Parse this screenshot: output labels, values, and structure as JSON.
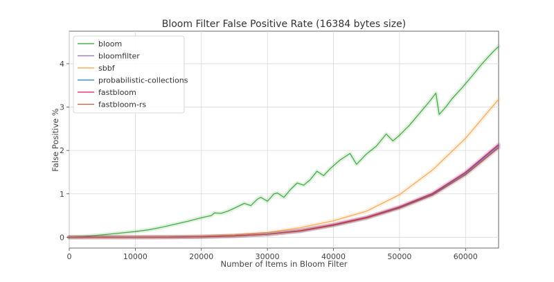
{
  "chart_data": {
    "type": "line",
    "title": "Bloom Filter False Positive Rate (16384 bytes size)",
    "xlabel": "Number of Items in Bloom Filter",
    "ylabel": "False Positive %",
    "xlim": [
      0,
      65000
    ],
    "ylim": [
      -0.25,
      4.75
    ],
    "xticks": [
      0,
      10000,
      20000,
      30000,
      40000,
      50000,
      60000
    ],
    "yticks": [
      0,
      1,
      2,
      3,
      4
    ],
    "grid": true,
    "legend_position": "top-left",
    "series": [
      {
        "name": "bloom",
        "color": "#2ca02c",
        "x": [
          0,
          2000,
          4000,
          6000,
          8000,
          10000,
          12000,
          14000,
          16000,
          18000,
          20000,
          21500,
          22000,
          23000,
          24000,
          25000,
          26500,
          27500,
          28500,
          29000,
          30000,
          31000,
          31500,
          32500,
          33500,
          34500,
          35500,
          36500,
          37500,
          38500,
          39500,
          41000,
          42500,
          43500,
          45000,
          46500,
          48000,
          49000,
          50000,
          51500,
          53000,
          54500,
          55500,
          56000,
          57000,
          58000,
          59500,
          61000,
          62500,
          64000,
          65000
        ],
        "values": [
          0.0,
          0.01,
          0.04,
          0.07,
          0.1,
          0.13,
          0.17,
          0.23,
          0.3,
          0.37,
          0.45,
          0.5,
          0.56,
          0.55,
          0.6,
          0.67,
          0.78,
          0.73,
          0.88,
          0.92,
          0.83,
          1.0,
          1.02,
          0.92,
          1.1,
          1.25,
          1.2,
          1.33,
          1.52,
          1.42,
          1.58,
          1.78,
          1.93,
          1.68,
          1.92,
          2.1,
          2.38,
          2.22,
          2.35,
          2.58,
          2.85,
          3.12,
          3.32,
          2.83,
          3.0,
          3.2,
          3.45,
          3.72,
          4.0,
          4.25,
          4.4
        ]
      },
      {
        "name": "bloomfilter",
        "color": "#9467bd",
        "x": [
          0,
          5000,
          10000,
          15000,
          20000,
          25000,
          30000,
          35000,
          40000,
          45000,
          50000,
          55000,
          60000,
          65000
        ],
        "values": [
          0.0,
          0.0,
          0.0,
          0.002,
          0.01,
          0.03,
          0.07,
          0.15,
          0.28,
          0.45,
          0.68,
          0.98,
          1.45,
          2.08
        ]
      },
      {
        "name": "sbbf",
        "color": "#ff9f3f",
        "x": [
          0,
          5000,
          10000,
          15000,
          20000,
          25000,
          30000,
          35000,
          40000,
          45000,
          50000,
          55000,
          60000,
          65000
        ],
        "values": [
          0.0,
          0.0,
          0.001,
          0.005,
          0.02,
          0.05,
          0.11,
          0.22,
          0.38,
          0.6,
          0.98,
          1.55,
          2.28,
          3.18
        ]
      },
      {
        "name": "probabilistic-collections",
        "color": "#1f77b4",
        "x": [
          0,
          5000,
          10000,
          15000,
          20000,
          25000,
          30000,
          35000,
          40000,
          45000,
          50000,
          55000,
          60000,
          65000
        ],
        "values": [
          0.0,
          0.0,
          0.0,
          0.002,
          0.01,
          0.03,
          0.07,
          0.15,
          0.28,
          0.45,
          0.69,
          1.0,
          1.48,
          2.12
        ]
      },
      {
        "name": "fastbloom",
        "color": "#e6195a",
        "x": [
          0,
          5000,
          10000,
          15000,
          20000,
          25000,
          30000,
          35000,
          40000,
          45000,
          50000,
          55000,
          60000,
          65000
        ],
        "values": [
          0.0,
          0.0,
          0.0,
          0.002,
          0.01,
          0.03,
          0.07,
          0.15,
          0.29,
          0.46,
          0.7,
          1.01,
          1.5,
          2.14
        ]
      },
      {
        "name": "fastbloom-rs",
        "color": "#b0553a",
        "x": [
          0,
          5000,
          10000,
          15000,
          20000,
          25000,
          30000,
          35000,
          40000,
          45000,
          50000,
          55000,
          60000,
          65000
        ],
        "values": [
          0.0,
          0.0,
          0.0,
          0.002,
          0.01,
          0.03,
          0.07,
          0.14,
          0.27,
          0.44,
          0.67,
          0.97,
          1.44,
          2.06
        ]
      }
    ]
  }
}
